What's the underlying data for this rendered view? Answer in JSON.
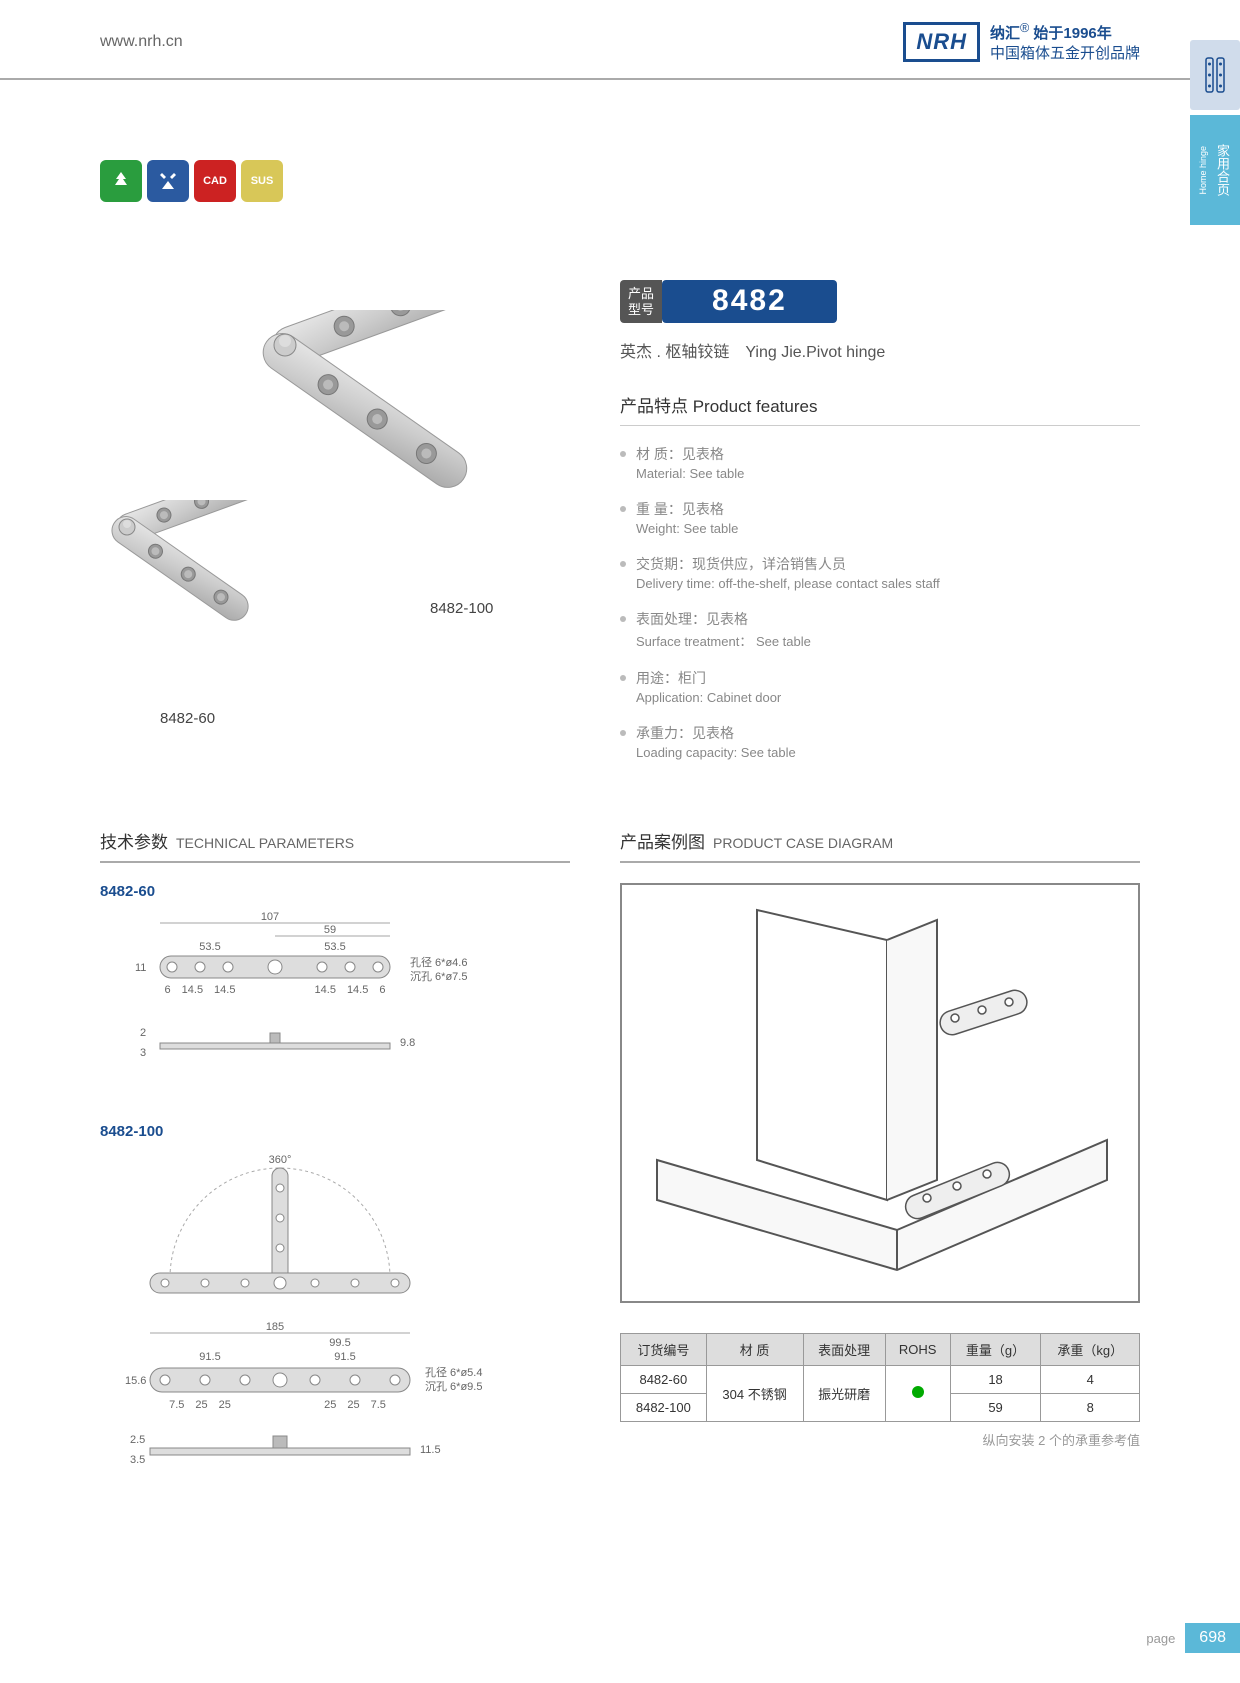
{
  "header": {
    "url": "www.nrh.cn",
    "logo": "NRH",
    "tagline1": "纳汇",
    "tagline2": "始于1996年",
    "tagline3": "中国箱体五金开创品牌",
    "reg": "®"
  },
  "side": {
    "cn": "家用合页",
    "en": "Home hinge"
  },
  "badges": [
    {
      "color": "#2a9d3e",
      "icon": "tree"
    },
    {
      "color": "#2b5aa0",
      "icon": "tools"
    },
    {
      "color": "#c22",
      "icon": "CAD"
    },
    {
      "color": "#d8c758",
      "icon": "SUS"
    }
  ],
  "model": {
    "label1": "产品",
    "label2": "型号",
    "number": "8482"
  },
  "subtitle": "英杰 . 枢轴铰链　Ying Jie.Pivot hinge",
  "features": {
    "header": "产品特点 Product features",
    "items": [
      {
        "cn": "材 质：见表格",
        "en": "Material: See table"
      },
      {
        "cn": "重 量：见表格",
        "en": "Weight: See table"
      },
      {
        "cn": "交货期：现货供应，详洽销售人员",
        "en": "Delivery time: off-the-shelf, please contact sales staff"
      },
      {
        "cn": "表面处理：见表格",
        "en": "Surface treatment： See table"
      },
      {
        "cn": "用途：柜门",
        "en": "Application: Cabinet door"
      },
      {
        "cn": "承重力：见表格",
        "en": "Loading capacity: See table"
      }
    ]
  },
  "prodLabels": {
    "a": "8482-100",
    "b": "8482-60"
  },
  "tech": {
    "header": "技术参数",
    "header_en": "TECHNICAL PARAMETERS",
    "d1": "8482-60",
    "d2": "8482-100"
  },
  "dims60": {
    "w": "107",
    "w2": "59",
    "h1": "53.5",
    "h2": "53.5",
    "t": "11",
    "holes": "6 14.5 14.5",
    "holes2": "14.5 14.5 6",
    "note1": "孔径 6*ø4.6",
    "note2": "沉孔 6*ø7.5",
    "side1": "2",
    "side2": "3",
    "side3": "9.8"
  },
  "dims100": {
    "angle": "360°",
    "w": "185",
    "w2": "99.5",
    "h1": "91.5",
    "h2": "91.5",
    "t": "15.6",
    "holes": "7.5 25 25",
    "holes2": "25 25 7.5",
    "note1": "孔径 6*ø5.4",
    "note2": "沉孔 6*ø9.5",
    "side1": "2.5",
    "side2": "3.5",
    "side3": "11.5"
  },
  "case": {
    "header": "产品案例图",
    "header_en": "PRODUCT CASE DIAGRAM"
  },
  "table": {
    "cols": [
      "订货编号",
      "材 质",
      "表面处理",
      "ROHS",
      "重量（g）",
      "承重（kg）"
    ],
    "rows": [
      {
        "id": "8482-60",
        "mat": "304 不锈钢",
        "surf": "振光研磨",
        "rohs": true,
        "wt": "18",
        "load": "4"
      },
      {
        "id": "8482-100",
        "mat": "",
        "surf": "",
        "rohs": "",
        "wt": "59",
        "load": "8"
      }
    ],
    "note": "纵向安装 2 个的承重参考值"
  },
  "page": {
    "label": "page",
    "num": "698"
  }
}
